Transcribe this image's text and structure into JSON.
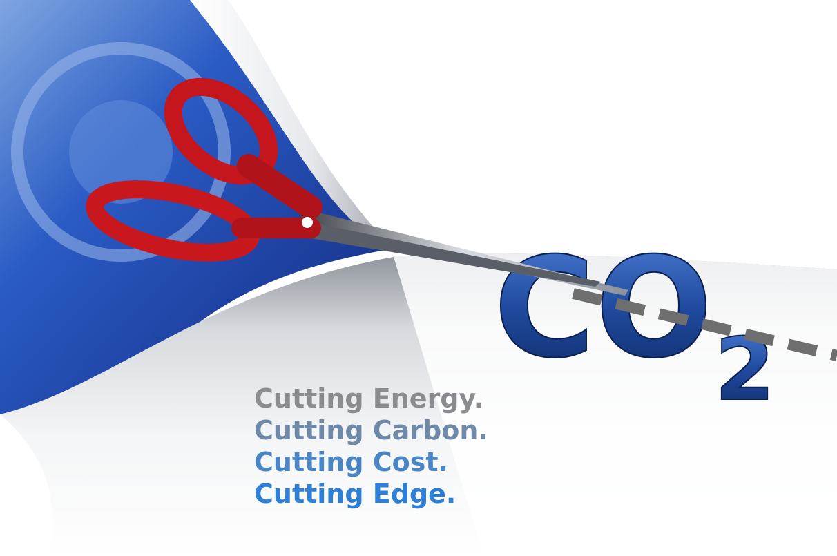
{
  "co2": {
    "main": "CO",
    "subscript": "2"
  },
  "taglines": [
    "Cutting Energy.",
    "Cutting Carbon.",
    "Cutting Cost.",
    "Cutting Edge."
  ]
}
